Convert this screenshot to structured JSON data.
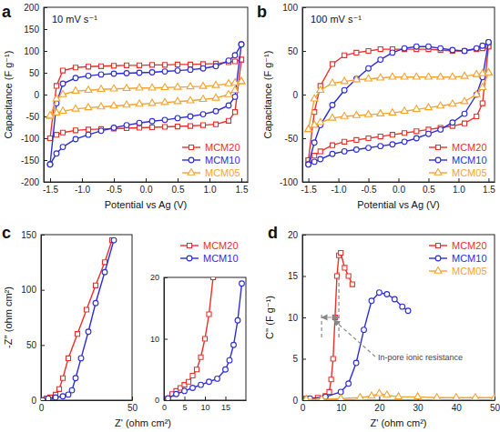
{
  "chart_data": [
    {
      "type": "line",
      "title": "a",
      "subtitle": "10 mV s⁻¹",
      "xlabel": "Potential vs Ag (V)",
      "ylabel": "Capacitance (F g⁻¹)",
      "xlim": [
        -1.6,
        1.6
      ],
      "xticks": [
        -1.5,
        {
          "value": -1,
          "label": "-1.0"
        },
        -0.5,
        {
          "value": 0,
          "label": "0.0"
        },
        0.5,
        {
          "value": 1,
          "label": "1.0"
        },
        1.5
      ],
      "ylim": [
        -200,
        200
      ],
      "yticks": [
        -200,
        -150,
        -100,
        -50,
        0,
        50,
        100,
        150,
        200
      ],
      "legend": "lower right",
      "x": [
        -1.5,
        -1.4,
        -1.3,
        -1.1,
        -0.9,
        -0.7,
        -0.5,
        -0.3,
        -0.1,
        0.1,
        0.3,
        0.5,
        0.7,
        0.9,
        1.1,
        1.3,
        1.4,
        1.5,
        1.5,
        1.4,
        1.3,
        1.1,
        0.9,
        0.7,
        0.5,
        0.3,
        0.1,
        -0.1,
        -0.3,
        -0.5,
        -0.7,
        -0.9,
        -1.1,
        -1.3,
        -1.4,
        -1.5
      ],
      "series": [
        {
          "name": "MCM20",
          "color": "#e8302a",
          "marker": "square",
          "values": [
            -100,
            20,
            55,
            62,
            64,
            65,
            66,
            67,
            67,
            68,
            68,
            69,
            69,
            70,
            71,
            74,
            76,
            80,
            80,
            -40,
            -60,
            -68,
            -70,
            -72,
            -73,
            -74,
            -75,
            -76,
            -77,
            -78,
            -79,
            -80,
            -82,
            -87,
            -92,
            -100
          ]
        },
        {
          "name": "MCM10",
          "color": "#2d2dd6",
          "marker": "circle",
          "values": [
            -160,
            -20,
            25,
            38,
            43,
            46,
            48,
            49,
            50,
            51,
            53,
            55,
            57,
            60,
            65,
            78,
            90,
            115,
            115,
            -5,
            -25,
            -38,
            -45,
            -50,
            -54,
            -58,
            -61,
            -65,
            -70,
            -76,
            -83,
            -92,
            -102,
            -120,
            -135,
            -160
          ]
        },
        {
          "name": "MCM05",
          "color": "#f5a330",
          "marker": "triangle",
          "values": [
            -50,
            -10,
            0,
            8,
            10,
            12,
            13,
            14,
            15,
            15,
            16,
            17,
            18,
            19,
            21,
            25,
            27,
            30,
            30,
            10,
            0,
            -8,
            -11,
            -14,
            -16,
            -18,
            -20,
            -22,
            -24,
            -26,
            -28,
            -30,
            -33,
            -38,
            -42,
            -48
          ]
        }
      ]
    },
    {
      "type": "line",
      "title": "b",
      "subtitle": "100 mV s⁻¹",
      "xlabel": "Potential vs Ag (V)",
      "ylabel": "Capacitance (F g⁻¹)",
      "xlim": [
        -1.6,
        1.6
      ],
      "xticks": [
        -1.5,
        {
          "value": -1,
          "label": "-1.0"
        },
        -0.5,
        {
          "value": 0,
          "label": "0.0"
        },
        0.5,
        {
          "value": 1,
          "label": "1.0"
        },
        1.5
      ],
      "ylim": [
        -100,
        100
      ],
      "yticks": [
        -100,
        -50,
        0,
        50,
        100
      ],
      "legend": "lower right",
      "x": [
        -1.5,
        -1.4,
        -1.3,
        -1.1,
        -0.9,
        -0.7,
        -0.5,
        -0.3,
        -0.1,
        0.1,
        0.3,
        0.5,
        0.7,
        0.9,
        1.1,
        1.3,
        1.4,
        1.5,
        1.5,
        1.4,
        1.3,
        1.1,
        0.9,
        0.7,
        0.5,
        0.3,
        0.1,
        -0.1,
        -0.3,
        -0.5,
        -0.7,
        -0.9,
        -1.1,
        -1.3,
        -1.4,
        -1.5
      ],
      "series": [
        {
          "name": "MCM20",
          "color": "#e8302a",
          "marker": "square",
          "values": [
            -75,
            -20,
            10,
            35,
            45,
            48,
            50,
            52,
            52,
            52,
            52,
            52,
            51,
            50,
            50,
            52,
            53,
            55,
            55,
            -10,
            -25,
            -33,
            -36,
            -38,
            -40,
            -42,
            -44,
            -46,
            -48,
            -50,
            -52,
            -54,
            -58,
            -65,
            -70,
            -75
          ]
        },
        {
          "name": "MCM10",
          "color": "#2d2dd6",
          "marker": "circle",
          "values": [
            -80,
            -55,
            -35,
            -12,
            5,
            18,
            30,
            40,
            48,
            53,
            55,
            55,
            53,
            51,
            50,
            53,
            56,
            60,
            60,
            20,
            0,
            -22,
            -32,
            -40,
            -45,
            -50,
            -54,
            -57,
            -59,
            -61,
            -63,
            -65,
            -68,
            -74,
            -77,
            -80
          ]
        },
        {
          "name": "MCM05",
          "color": "#f5a330",
          "marker": "triangle",
          "values": [
            -40,
            -5,
            5,
            13,
            15,
            17,
            18,
            19,
            20,
            20,
            20,
            20,
            20,
            20,
            21,
            23,
            24,
            25,
            25,
            8,
            0,
            -8,
            -11,
            -13,
            -15,
            -17,
            -19,
            -21,
            -22,
            -23,
            -24,
            -25,
            -27,
            -32,
            -35,
            -40
          ]
        }
      ]
    },
    {
      "type": "line",
      "title": "c",
      "xlabel": "Z' (ohm cm²)",
      "ylabel": "-Z'' (ohm cm²)",
      "xlim": [
        0,
        50
      ],
      "xticks": [
        0,
        50
      ],
      "ylim": [
        0,
        150
      ],
      "yticks": [
        0,
        50,
        100,
        150
      ],
      "legend": "upper right",
      "series": [
        {
          "name": "MCM20",
          "color": "#e8302a",
          "marker": "square",
          "x": [
            1,
            3,
            5,
            8,
            10,
            12,
            15,
            20,
            25,
            30,
            35,
            39
          ],
          "values": [
            0,
            1.5,
            2.5,
            5,
            10,
            20,
            38,
            60,
            82,
            104,
            125,
            145
          ]
        },
        {
          "name": "MCM10",
          "color": "#2d2dd6",
          "marker": "circle",
          "x": [
            1,
            4,
            8,
            12,
            15,
            17,
            19,
            22,
            26,
            30,
            35,
            40
          ],
          "values": [
            0,
            1.5,
            2.5,
            3.5,
            5,
            9,
            20,
            38,
            62,
            88,
            116,
            145
          ]
        }
      ]
    },
    {
      "type": "line",
      "xlim": [
        0,
        20
      ],
      "xticks": [
        0,
        5,
        10,
        15
      ],
      "ylim": [
        0,
        20
      ],
      "yticks": [
        0,
        10,
        20
      ],
      "series": [
        {
          "color": "#e8302a",
          "marker": "square",
          "x": [
            1,
            2,
            3,
            4,
            5,
            6,
            7,
            8,
            9,
            10,
            11,
            12
          ],
          "values": [
            0.3,
            1,
            1.5,
            2,
            2.5,
            3,
            4,
            5,
            7,
            10,
            14,
            20
          ]
        },
        {
          "color": "#2d2dd6",
          "marker": "circle",
          "x": [
            1,
            3,
            5,
            7,
            9,
            11,
            13,
            15,
            16,
            17,
            18,
            19
          ],
          "values": [
            0.3,
            1,
            1.5,
            2,
            2.5,
            3,
            3.5,
            5,
            6.5,
            9,
            13,
            19
          ]
        }
      ]
    },
    {
      "type": "line",
      "title": "d",
      "xlabel": "Z' (ohm cm²)",
      "ylabel": "C'' (F g⁻¹)",
      "xlim": [
        0,
        50
      ],
      "xticks": [
        0,
        10,
        20,
        30,
        40,
        50
      ],
      "ylim": [
        0,
        20
      ],
      "yticks": [
        0,
        5,
        10,
        15,
        20
      ],
      "legend": "upper right",
      "annotations": [
        {
          "text": "In-pore ionic resistance",
          "x": [
            5,
            9.5
          ],
          "y": 10
        }
      ],
      "series": [
        {
          "name": "MCM20",
          "color": "#e8302a",
          "marker": "square",
          "x": [
            1,
            4,
            6,
            7,
            7.5,
            8,
            8.5,
            9,
            9.5,
            10,
            11,
            12,
            13
          ],
          "values": [
            0.2,
            0.3,
            0.5,
            1,
            2.5,
            5,
            10,
            15,
            17.5,
            17.8,
            16,
            15,
            14
          ]
        },
        {
          "name": "MCM10",
          "color": "#2d2dd6",
          "marker": "circle",
          "x": [
            2,
            6,
            10,
            12,
            14,
            16,
            18,
            20,
            22,
            24,
            26,
            27.5
          ],
          "values": [
            0.2,
            0.4,
            1,
            2,
            4.5,
            8.5,
            12,
            13,
            12.8,
            12.2,
            11.3,
            10.8
          ]
        },
        {
          "name": "MCM05",
          "color": "#f5a330",
          "marker": "triangle",
          "x": [
            1,
            5,
            10,
            15,
            18,
            20,
            22,
            25,
            30,
            35,
            40,
            45,
            50
          ],
          "values": [
            0.1,
            0.1,
            0.2,
            0.3,
            0.5,
            0.8,
            0.6,
            0.4,
            0.4,
            0.3,
            0.3,
            0.3,
            0.3
          ]
        }
      ]
    }
  ]
}
